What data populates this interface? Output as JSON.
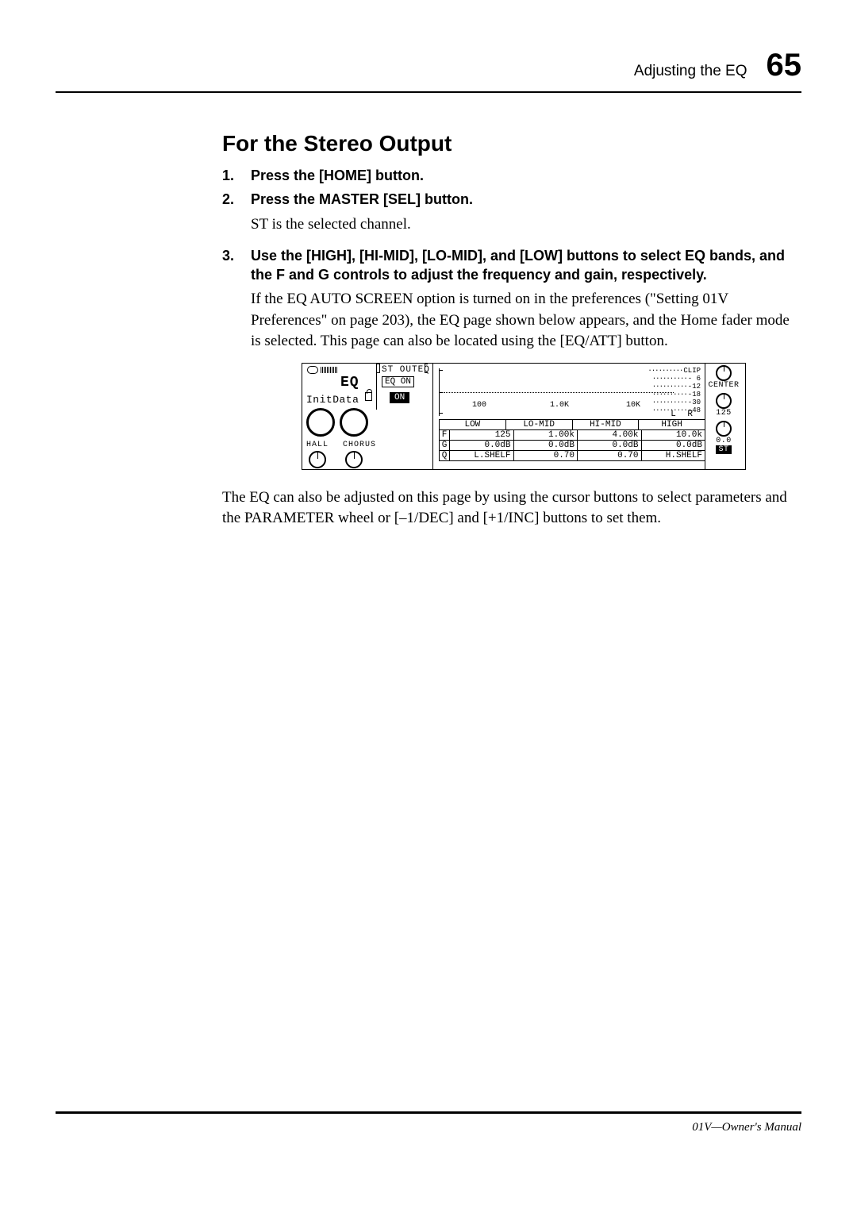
{
  "header": {
    "section": "Adjusting the EQ",
    "page_number": "65"
  },
  "title": "For the Stereo Output",
  "steps": [
    {
      "n": "1.",
      "text": "Press the [HOME] button."
    },
    {
      "n": "2.",
      "text": "Press the MASTER [SEL] button."
    },
    {
      "n": "3.",
      "text": "Use the [HIGH], [HI-MID], [LO-MID], and [LOW] buttons to select EQ bands, and the F and G controls to adjust the frequency and gain, respectively."
    }
  ],
  "body_after_step2": "ST is the selected channel.",
  "body_after_step3": "If the EQ AUTO SCREEN option is turned on in the preferences (\"Setting 01V Preferences\" on page 203), the EQ page shown below appears, and the Home fader mode is selected. This page can also be located using the [EQ/ATT] button.",
  "body_end": "The EQ can also be adjusted on this page by using the cursor buttons to select parameters and the PARAMETER wheel or [–1/DEC] and [+1/INC] buttons to set them.",
  "lcd": {
    "header_text": "ST OUTEQ",
    "eq_label": "EQ",
    "eq_on_text": "EQ ON",
    "init_data": "InitData",
    "on_text": "ON",
    "effects": {
      "left": "HALL",
      "right": "CHORUS"
    },
    "graph": {
      "x_ticks": [
        "100",
        "1.0K",
        "10K"
      ],
      "centerline_y": 30
    },
    "meter": {
      "labels": [
        "CLIP",
        "- 6",
        "-12",
        "-18",
        "-30",
        "-48"
      ],
      "lr": "L R"
    },
    "right": {
      "center_label": "CENTER",
      "freq_value": "125",
      "pan_value": "0.0",
      "st_label": "ST"
    },
    "table": {
      "bands": [
        "LOW",
        "LO-MID",
        "HI-MID",
        "HIGH"
      ],
      "rows": [
        {
          "label": "F",
          "cells": [
            "125",
            "1.00k",
            "4.00k",
            "10.0k"
          ]
        },
        {
          "label": "G",
          "cells": [
            "0.0dB",
            "0.0dB",
            "0.0dB",
            "0.0dB"
          ]
        },
        {
          "label": "Q",
          "cells": [
            "L.SHELF",
            "0.70",
            "0.70",
            "H.SHELF"
          ]
        }
      ]
    },
    "colors": {
      "fg": "#000000",
      "bg": "#ffffff"
    }
  },
  "footer": "01V—Owner's Manual"
}
